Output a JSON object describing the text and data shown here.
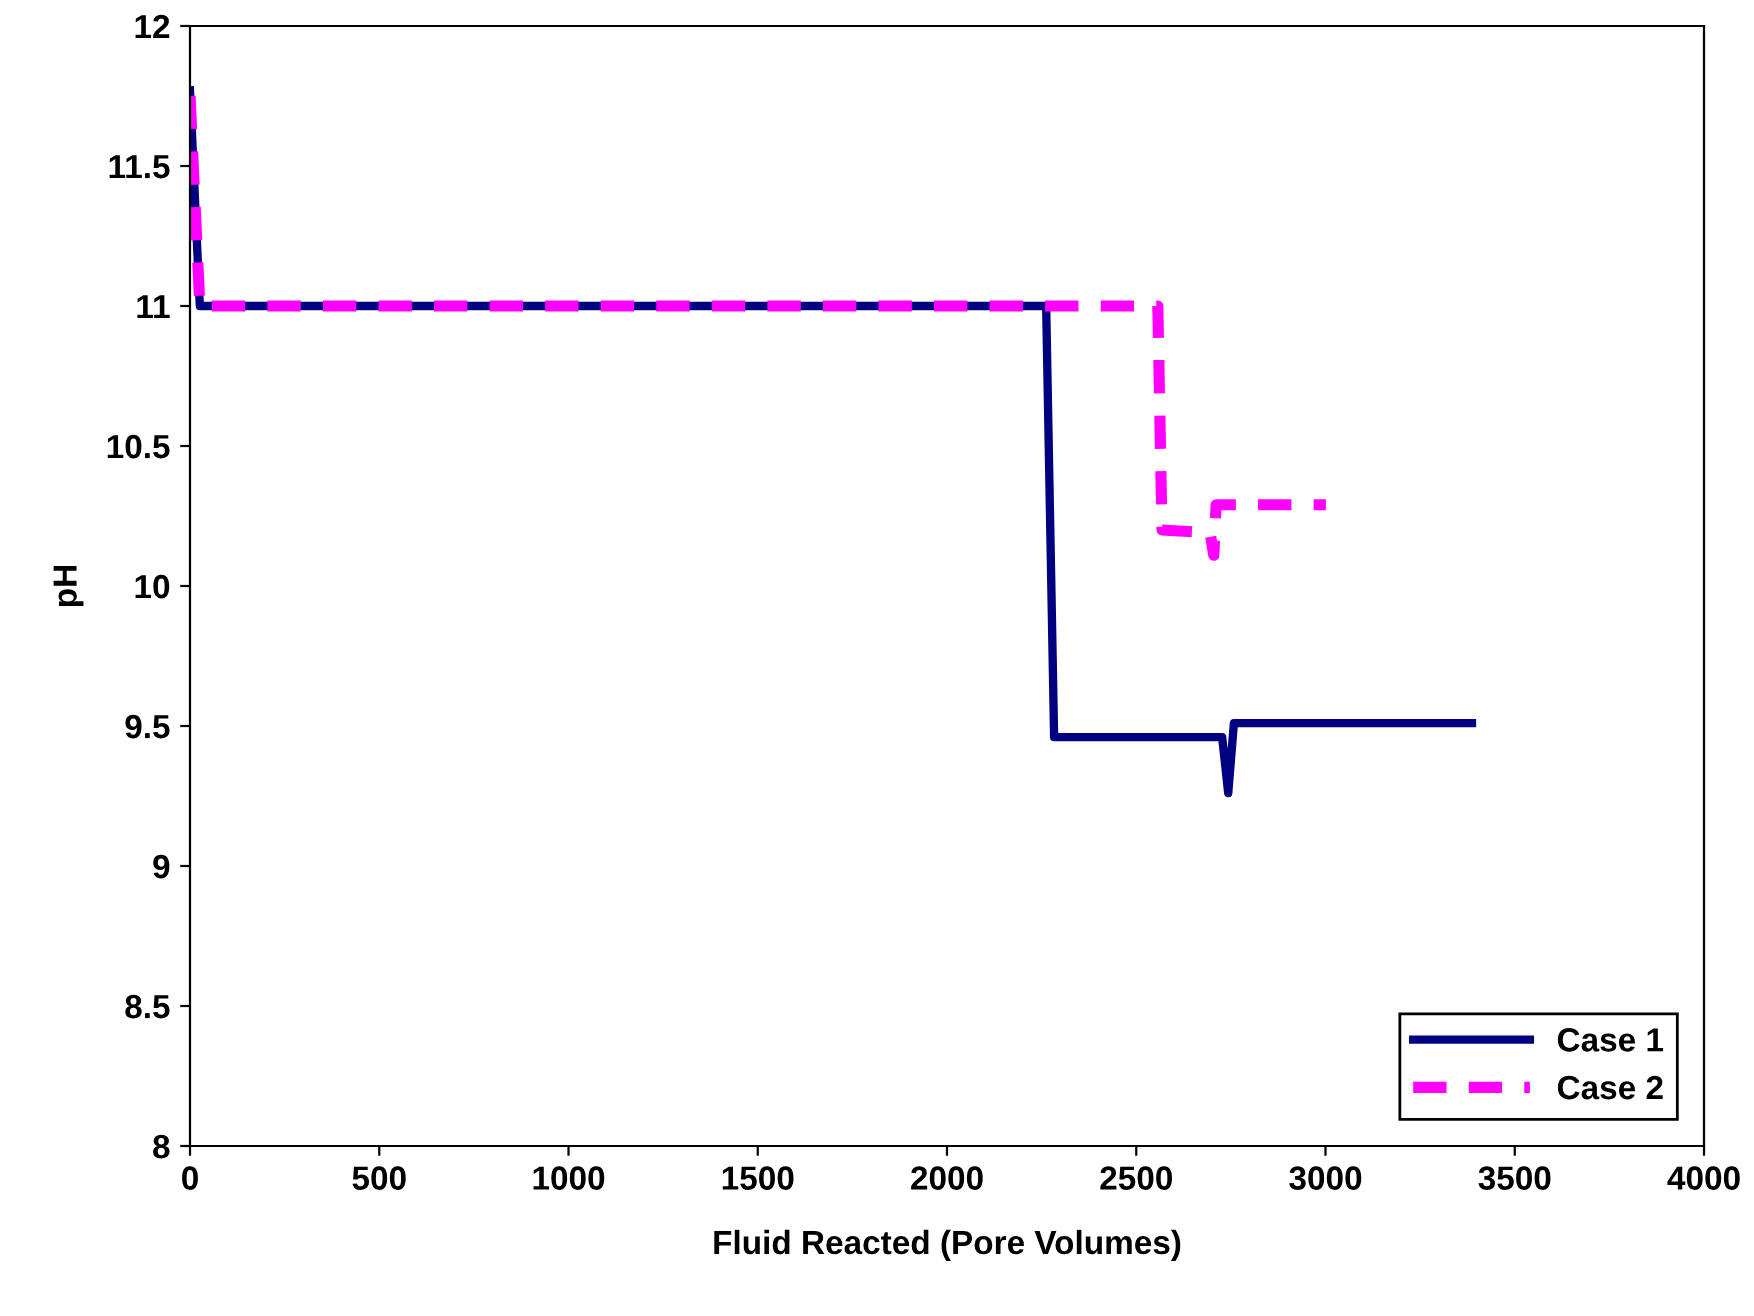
{
  "chart_data": {
    "type": "line",
    "xlabel": "Fluid Reacted (Pore Volumes)",
    "ylabel": "pH",
    "xlim": [
      0,
      4000
    ],
    "xticks": [
      0,
      500,
      1000,
      1500,
      2000,
      2500,
      3000,
      3500,
      4000
    ],
    "ylim": [
      8,
      12
    ],
    "yticks": [
      8,
      {
        "value": 8.5,
        "label": "8.5"
      },
      9,
      {
        "value": 9.5,
        "label": "9.5"
      },
      10,
      {
        "value": 10.5,
        "label": "10.5"
      },
      11,
      {
        "value": 11.5,
        "label": "11.5"
      },
      12
    ],
    "grid": false,
    "legend": "bottom right",
    "marker": "none",
    "series": [
      {
        "name": "Case 1",
        "color": "#000080",
        "line_style": "solid",
        "x": [
          0,
          26,
          2262,
          2283,
          2727,
          2743,
          2758,
          3387
        ],
        "values": [
          11.77,
          11.0,
          11.0,
          9.46,
          9.46,
          9.26,
          9.51,
          9.51
        ]
      },
      {
        "name": "Case 2",
        "color": "#ff00ff",
        "line_style": "dashed",
        "x": [
          0,
          26,
          2557,
          2568,
          2695,
          2705,
          2711,
          3001
        ],
        "values": [
          11.75,
          11.0,
          11.0,
          10.2,
          10.19,
          10.11,
          10.29,
          10.29
        ]
      }
    ]
  }
}
